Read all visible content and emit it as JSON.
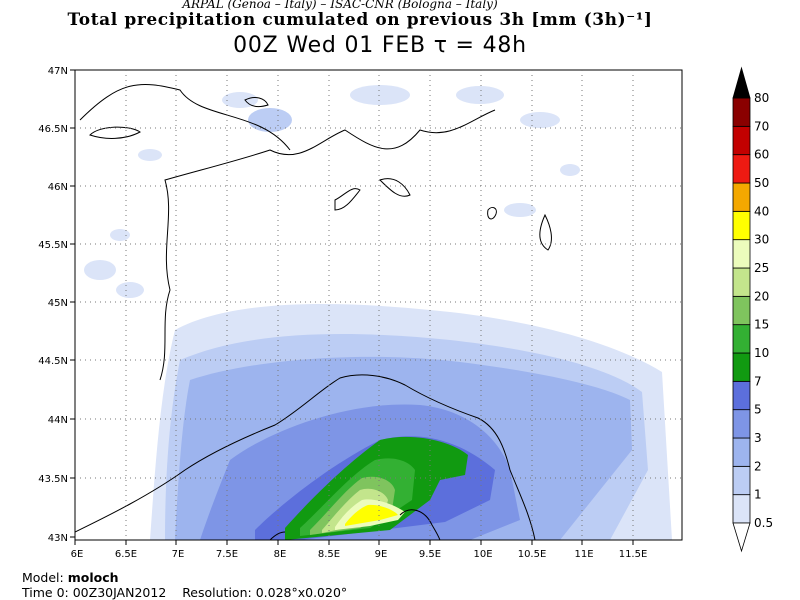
{
  "header": {
    "credit": "ARPAL (Genoa – Italy) – ISAC-CNR (Bologna – Italy)",
    "title": "Total precipitation cumulated on previous 3h [mm (3h)⁻¹]",
    "subtitle": "00Z Wed 01 FEB  τ = 48h"
  },
  "map": {
    "lon_labels": [
      "6E",
      "6.5E",
      "7E",
      "7.5E",
      "8E",
      "8.5E",
      "9E",
      "9.5E",
      "10E",
      "10.5E",
      "11E",
      "11.5E"
    ],
    "lat_labels": [
      "43N",
      "43.5N",
      "44N",
      "44.5N",
      "45N",
      "45.5N",
      "46N",
      "46.5N",
      "47N"
    ]
  },
  "colorbar": {
    "levels": [
      "0.5",
      "1",
      "2",
      "3",
      "5",
      "7",
      "10",
      "15",
      "20",
      "25",
      "30",
      "40",
      "50",
      "60",
      "70",
      "80"
    ],
    "colors": [
      "#ffffff",
      "#dbe4f8",
      "#bccdf4",
      "#9db4ee",
      "#7e95e6",
      "#5c6fdc",
      "#119a11",
      "#33b033",
      "#7fc45e",
      "#c3e58c",
      "#ecfcbc",
      "#ffff00",
      "#f4a800",
      "#ee1a12",
      "#c20000",
      "#8a0000",
      "#000000"
    ]
  },
  "footer": {
    "model_label": "Model:",
    "model_value": "moloch",
    "time_label": "Time 0:",
    "time_value": "00Z30JAN2012",
    "res_label": "Resolution:",
    "res_value": "0.028°x0.020°"
  }
}
